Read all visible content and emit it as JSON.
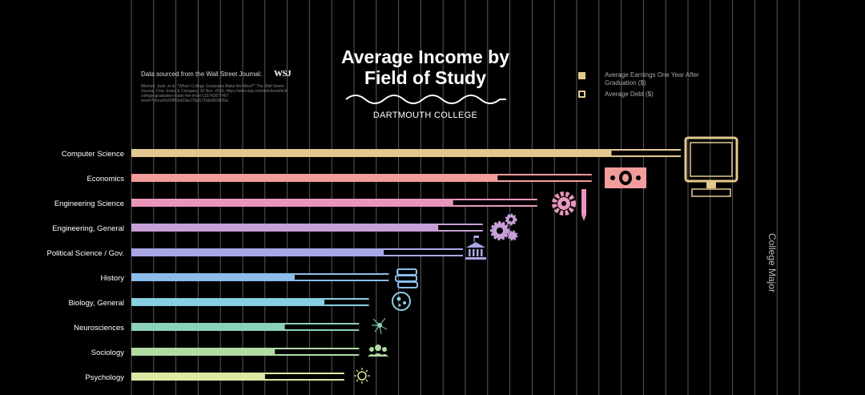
{
  "source": {
    "heading": "Data sourced from the Wall Street Journal:",
    "logo": "WSJ",
    "citation": "Mitchell, Josh, et al. \"Which College Graduates Make the Most?\" The Wall Street Journal, Dow Jones & Company, 20 Nov. 2019, https://www.wsj.com/articles/which-college-graduates-make-the-most-11574267746?mod=7obcvs%2Ffffi3rdXNeJ78aS73SbxM24cfSa"
  },
  "title": "Average Income by Field of Study",
  "subtitle": "DARTMOUTH COLLEGE",
  "legend": {
    "earnings_label": "Average Earnings One Year After Graduation ($)",
    "debt_label": "Average Debt ($)",
    "earnings_color": "#e3c98f",
    "debt_color": "#e3c98f"
  },
  "axis_title": "College Major",
  "colors": {
    "background": "#000000",
    "gridline": "#5a5a5a"
  },
  "chart_data": {
    "type": "bar",
    "orientation": "horizontal",
    "categories": [
      "Computer Science",
      "Economics",
      "Engineering Science",
      "Engineering, General",
      "Political Science / Gov.",
      "History",
      "Biology, General",
      "Neurosciences",
      "Sociology",
      "Psychology"
    ],
    "series": [
      {
        "name": "Average Earnings One Year After Graduation ($)",
        "values": [
          111000,
          93000,
          82000,
          71000,
          67000,
          52000,
          48000,
          46000,
          46000,
          43000
        ]
      },
      {
        "name": "Average Debt ($)",
        "values": [
          14000,
          19000,
          17000,
          9000,
          16000,
          19000,
          9000,
          15000,
          17000,
          16000
        ]
      }
    ],
    "bar_colors": [
      "#e3c98f",
      "#f29c9c",
      "#e996bd",
      "#c69fd8",
      "#a9a6e6",
      "#8bbde8",
      "#88cfe3",
      "#89d3bd",
      "#b1dca5",
      "#dde9a5"
    ],
    "icons": [
      "computer-icon",
      "money-icon",
      "gear-pencil-icon",
      "gears-icon",
      "capitol-icon",
      "books-icon",
      "cell-icon",
      "neuron-icon",
      "people-icon",
      "brain-icon"
    ],
    "grid": true,
    "legend_position": "top-right"
  }
}
